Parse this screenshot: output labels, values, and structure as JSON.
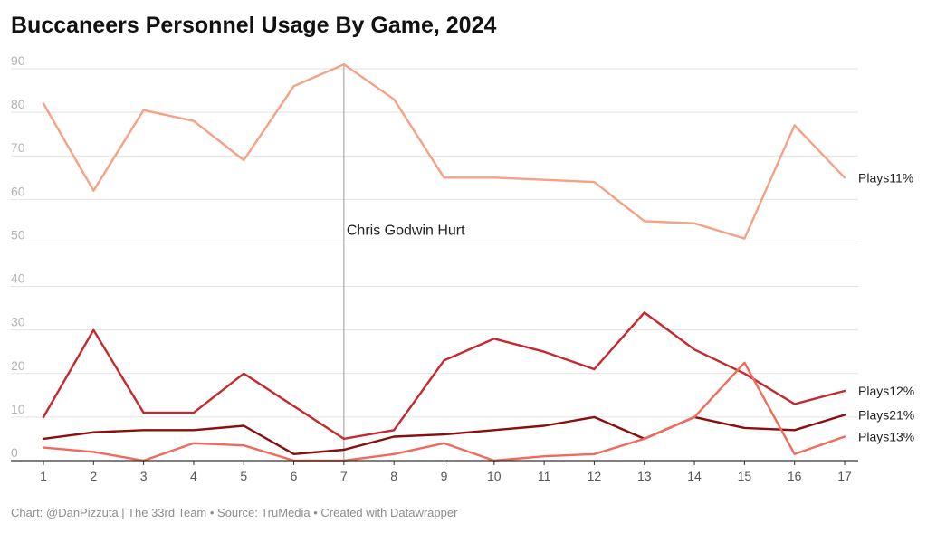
{
  "title": "Buccaneers Personnel Usage By Game, 2024",
  "footer": "Chart: @DanPizzuta | The 33rd Team • Source: TruMedia • Created with Datawrapper",
  "chart_data": {
    "type": "line",
    "title": "Buccaneers Personnel Usage By Game, 2024",
    "xlabel": "",
    "ylabel": "",
    "x": [
      1,
      2,
      3,
      4,
      5,
      6,
      7,
      8,
      9,
      10,
      11,
      12,
      13,
      14,
      15,
      16,
      17
    ],
    "xlim": [
      1,
      17
    ],
    "ylim": [
      0,
      90
    ],
    "yticks": [
      0,
      10,
      20,
      30,
      40,
      50,
      60,
      70,
      80,
      90
    ],
    "grid": "horizontal",
    "series": [
      {
        "name": "Plays11%",
        "color": "#f5a185",
        "values": [
          82,
          62,
          80.5,
          78,
          69,
          86,
          91,
          83,
          65,
          65,
          64.5,
          64,
          55,
          54.5,
          51,
          77,
          65
        ]
      },
      {
        "name": "Plays12%",
        "color": "#c8272d",
        "values": [
          10,
          30,
          11,
          11,
          20,
          12.5,
          5,
          7,
          23,
          28,
          25,
          21,
          34,
          25.5,
          20,
          13,
          16
        ]
      },
      {
        "name": "Plays21%",
        "color": "#8b0d0d",
        "values": [
          5,
          6.5,
          7,
          7,
          8,
          1.5,
          2.5,
          5.5,
          6,
          7,
          8,
          10,
          5,
          10,
          7.5,
          7,
          10.5
        ]
      },
      {
        "name": "Plays13%",
        "color": "#f26a5a",
        "values": [
          3,
          2,
          0,
          4,
          3.5,
          0,
          0,
          1.5,
          4,
          0,
          1,
          1.5,
          5,
          10,
          22.5,
          1.5,
          5.5
        ]
      }
    ],
    "annotations": [
      {
        "x": 7,
        "label": "Chris Godwin Hurt"
      }
    ]
  }
}
